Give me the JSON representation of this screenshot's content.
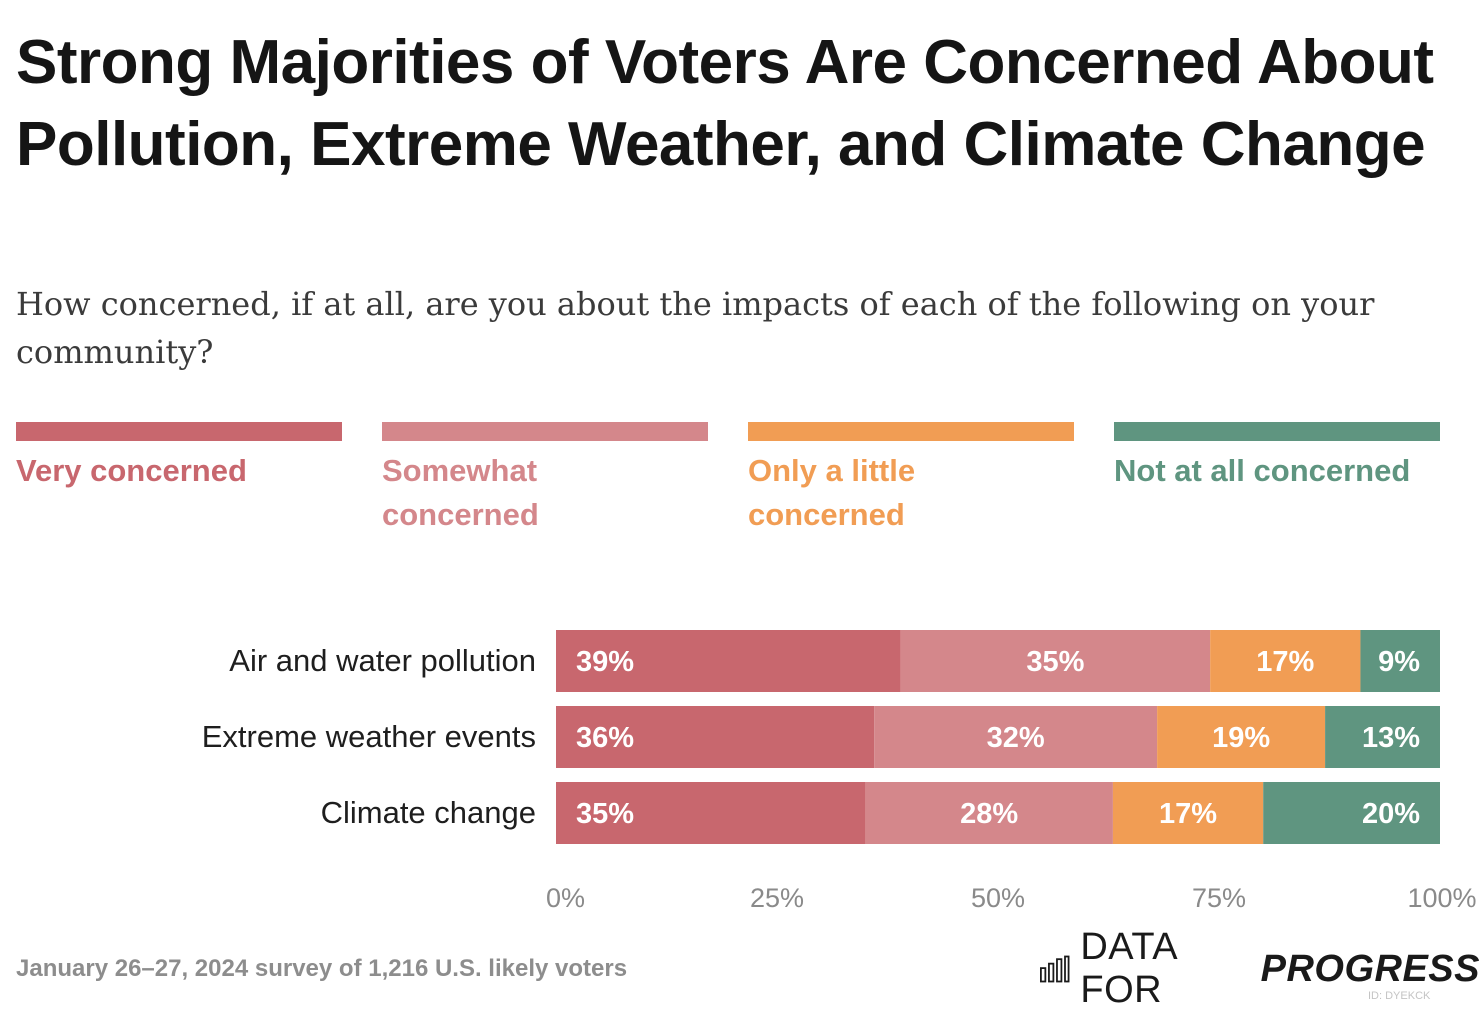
{
  "title": "Strong Majorities of Voters Are Concerned About Pollution, Extreme Weather, and Climate Change",
  "subtitle": "How concerned, if at all, are you about the impacts of each of the following on your community?",
  "legend": [
    {
      "label": "Very concerned",
      "color": "#c8676e"
    },
    {
      "label": "Somewhat concerned",
      "color": "#d4878b"
    },
    {
      "label": "Only a little concerned",
      "color": "#f19d54"
    },
    {
      "label": "Not at all concerned",
      "color": "#5f9580"
    }
  ],
  "chart_data": {
    "type": "bar",
    "orientation": "horizontal",
    "stacked": true,
    "categories": [
      "Air and water pollution",
      "Extreme weather events",
      "Climate change"
    ],
    "series": [
      {
        "name": "Very concerned",
        "values": [
          39,
          36,
          35
        ],
        "color": "#c8676e"
      },
      {
        "name": "Somewhat concerned",
        "values": [
          35,
          32,
          28
        ],
        "color": "#d4878b"
      },
      {
        "name": "Only a little concerned",
        "values": [
          17,
          19,
          17
        ],
        "color": "#f19d54"
      },
      {
        "name": "Not at all concerned",
        "values": [
          9,
          13,
          20
        ],
        "color": "#5f9580"
      }
    ],
    "xlim": [
      0,
      100
    ],
    "xticks": [
      0,
      25,
      50,
      75,
      100
    ],
    "xtick_labels": [
      "0%",
      "25%",
      "50%",
      "75%",
      "100%"
    ],
    "value_suffix": "%"
  },
  "footer": {
    "note": "January 26–27, 2024 survey of 1,216 U.S. likely voters",
    "brand_prefix": "DATA FOR",
    "brand_strong": "PROGRESS",
    "id": "ID: DYEKCK"
  }
}
